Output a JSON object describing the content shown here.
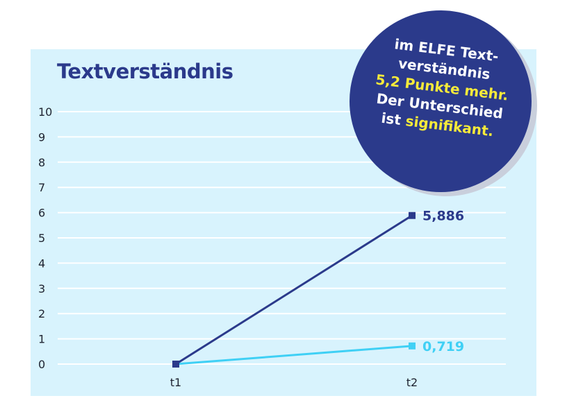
{
  "colors": {
    "panel_bg": "#d8f3fd",
    "grid": "#ffffff",
    "dark_series": "#2b3a8b",
    "light_series": "#3fd0f5",
    "badge_bg": "#2b3a8b",
    "highlight": "#f6ea3a"
  },
  "badge": {
    "line1": "im ELFE Text-",
    "line2": "verständnis",
    "line3": "5,2 Punkte mehr.",
    "line4": "Der Unterschied",
    "line5_pre": "ist ",
    "line5_hl": "signifikant."
  },
  "chart_data": {
    "type": "line",
    "title": "Textverständnis",
    "xlabel": "",
    "ylabel": "",
    "categories": [
      "t1",
      "t2"
    ],
    "ylim": [
      0,
      10
    ],
    "yticks": [
      0,
      1,
      2,
      3,
      4,
      5,
      6,
      7,
      8,
      9,
      10
    ],
    "grid": true,
    "series": [
      {
        "values": [
          0,
          5.886
        ],
        "color": "#2b3a8b",
        "end_label": "5,886"
      },
      {
        "values": [
          0,
          0.719
        ],
        "color": "#3fd0f5",
        "end_label": "0,719"
      }
    ]
  }
}
